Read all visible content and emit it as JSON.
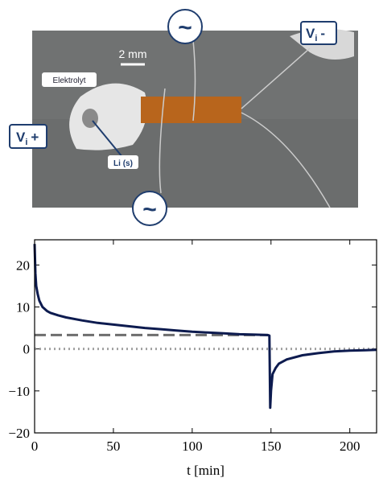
{
  "photo": {
    "scale_bar": "2 mm",
    "electrolyte": "Elektrolyt",
    "lithium": "Li (s)",
    "v_minus": {
      "main": "V",
      "sub": "i",
      "sign": "-"
    },
    "v_plus": {
      "main": "V",
      "sub": "i",
      "sign": "+"
    },
    "tilde_top": "~",
    "tilde_bottom": "~"
  },
  "chart_data": {
    "type": "line",
    "xlabel": "t [min]",
    "color": "#0d1b4f",
    "x": [
      0,
      0.5,
      1,
      2,
      3,
      5,
      8,
      10,
      15,
      20,
      30,
      40,
      50,
      60,
      70,
      80,
      90,
      100,
      110,
      120,
      130,
      140,
      148,
      149,
      149.5,
      150,
      151,
      153,
      155,
      160,
      170,
      180,
      190,
      200,
      210,
      217
    ],
    "values": [
      25,
      18,
      15,
      13,
      11.5,
      10,
      9,
      8.6,
      8,
      7.5,
      6.8,
      6.2,
      5.8,
      5.4,
      5.0,
      4.7,
      4.4,
      4.1,
      3.9,
      3.7,
      3.5,
      3.4,
      3.3,
      3.2,
      -14,
      -10,
      -6,
      -4.5,
      -3.5,
      -2.5,
      -1.5,
      -1,
      -0.6,
      -0.4,
      -0.3,
      -0.2
    ],
    "hlines": [
      {
        "y": 3.3,
        "xmax": 148,
        "style": "dashed",
        "color": "#6e6e6e"
      },
      {
        "y": 0,
        "style": "dotted",
        "color": "#a0a0a0"
      }
    ],
    "xlim": [
      0,
      217
    ],
    "ylim": [
      -20,
      26
    ],
    "xticks": [
      0,
      50,
      100,
      150,
      200
    ],
    "yticks": [
      {
        "value": -20,
        "label": "−20"
      },
      {
        "value": -10,
        "label": "−10"
      },
      0,
      10,
      20
    ]
  }
}
